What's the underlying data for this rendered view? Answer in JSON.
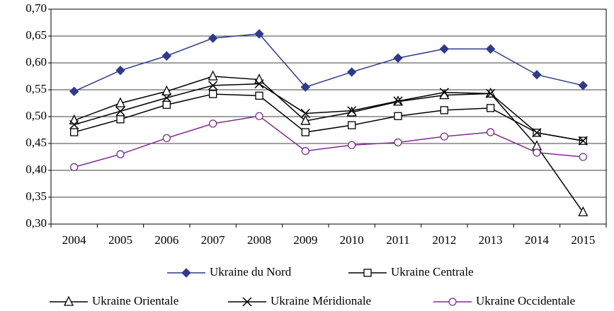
{
  "chart_data": {
    "type": "line",
    "categories": [
      "2004",
      "2005",
      "2006",
      "2007",
      "2008",
      "2009",
      "2010",
      "2011",
      "2012",
      "2013",
      "2014",
      "2015"
    ],
    "series": [
      {
        "name": "Ukraine du Nord",
        "color": "#2e3a8c",
        "marker": "diamond",
        "values": [
          0.547,
          0.586,
          0.613,
          0.646,
          0.654,
          0.555,
          0.583,
          0.609,
          0.626,
          0.626,
          0.578,
          0.558
        ]
      },
      {
        "name": "Ukraine Centrale",
        "color": "#000000",
        "marker": "square",
        "values": [
          0.471,
          0.495,
          0.522,
          0.542,
          0.539,
          0.471,
          0.484,
          0.501,
          0.512,
          0.516,
          0.47,
          0.455
        ]
      },
      {
        "name": "Ukraine Orientale",
        "color": "#000000",
        "marker": "triangle",
        "values": [
          0.493,
          0.525,
          0.547,
          0.575,
          0.569,
          0.492,
          0.508,
          0.528,
          0.54,
          0.543,
          0.445,
          0.322
        ]
      },
      {
        "name": "Ukraine Méridionale",
        "color": "#000000",
        "marker": "x",
        "values": [
          0.485,
          0.51,
          0.535,
          0.558,
          0.561,
          0.506,
          0.511,
          0.529,
          0.545,
          0.543,
          0.47,
          0.455
        ]
      },
      {
        "name": "Ukraine Occidentale",
        "color": "#7b2d8e",
        "marker": "circle",
        "values": [
          0.406,
          0.43,
          0.46,
          0.487,
          0.501,
          0.436,
          0.447,
          0.452,
          0.463,
          0.471,
          0.433,
          0.425
        ]
      }
    ],
    "ylim": [
      0.3,
      0.7
    ],
    "yticks": [
      {
        "value": 0.3,
        "label": "0,30"
      },
      {
        "value": 0.35,
        "label": "0,35"
      },
      {
        "value": 0.4,
        "label": "0,40"
      },
      {
        "value": 0.45,
        "label": "0,45"
      },
      {
        "value": 0.5,
        "label": "0,50"
      },
      {
        "value": 0.55,
        "label": "0,55"
      },
      {
        "value": 0.6,
        "label": "0,60"
      },
      {
        "value": 0.65,
        "label": "0,65"
      },
      {
        "value": 0.7,
        "label": "0,70"
      }
    ],
    "grid": true
  }
}
